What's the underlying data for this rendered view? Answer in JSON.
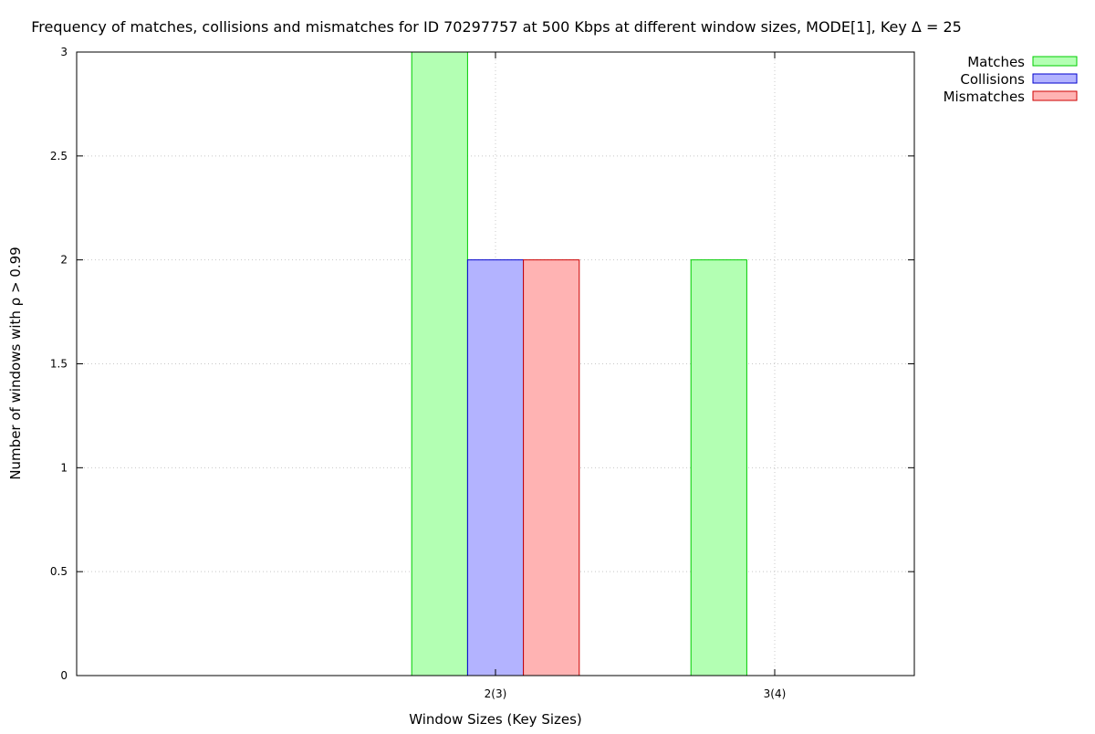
{
  "chart_data": {
    "type": "bar",
    "title": "Frequency of matches, collisions and mismatches for ID 70297757 at 500 Kbps at different window sizes, MODE[1], Key Δ = 25",
    "xlabel": "Window Sizes (Key Sizes)",
    "ylabel": "Number of windows with ρ > 0.99",
    "categories": [
      "2(3)",
      "3(4)"
    ],
    "x_range": [
      0.5,
      3.5
    ],
    "ylim": [
      0,
      3
    ],
    "y_ticks": [
      "0",
      "0.5",
      "1",
      "1.5",
      "2",
      "2.5",
      "3"
    ],
    "grid": true,
    "legend_position": "top-right outside plot",
    "series": [
      {
        "name": "Matches",
        "values": [
          3,
          2
        ],
        "fill": "#b3ffb3",
        "stroke": "#00cc00"
      },
      {
        "name": "Collisions",
        "values": [
          2,
          0
        ],
        "fill": "#b3b3ff",
        "stroke": "#0000cc"
      },
      {
        "name": "Mismatches",
        "values": [
          2,
          0
        ],
        "fill": "#ffb3b3",
        "stroke": "#cc0000"
      }
    ]
  }
}
